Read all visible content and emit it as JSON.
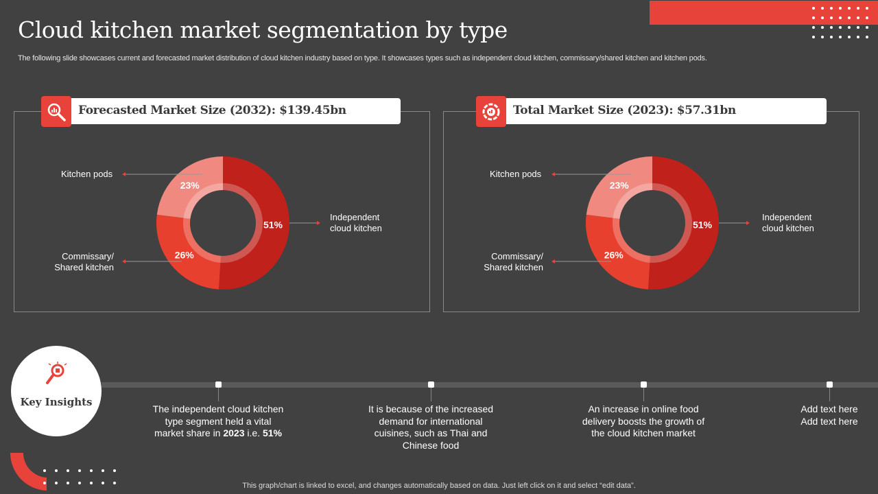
{
  "title": "Cloud kitchen market segmentation by type",
  "subtitle": "The following slide showcases current and forecasted market distribution of cloud kitchen industry based on type. It showcases types such as independent cloud kitchen, commissary/shared kitchen and kitchen pods.",
  "colors": {
    "accent": "#e8433a",
    "independent": "#c0211a",
    "commissary": "#e8402f",
    "pods": "#f08a80",
    "background": "#414141"
  },
  "chart_data": [
    {
      "type": "pie",
      "title": "Forecasted Market Size (2032): $139.45bn",
      "icon": "magnifier-chart-icon",
      "categories": [
        "Independent cloud kitchen",
        "Commissary/ Shared kitchen",
        "Kitchen pods"
      ],
      "values": [
        51,
        26,
        23
      ],
      "data_labels": [
        "51%",
        "26%",
        "23%"
      ],
      "donut": true
    },
    {
      "type": "pie",
      "title": "Total Market Size (2023): $57.31bn",
      "icon": "gauge-icon",
      "categories": [
        "Independent cloud kitchen",
        "Commissary/ Shared kitchen",
        "Kitchen pods"
      ],
      "values": [
        51,
        26,
        23
      ],
      "data_labels": [
        "51%",
        "26%",
        "23%"
      ],
      "donut": true
    }
  ],
  "labels": {
    "pods": "Kitchen pods",
    "independent_1": "Independent",
    "independent_2": "cloud kitchen",
    "commissary_1": "Commissary/",
    "commissary_2": "Shared kitchen"
  },
  "key_insights": {
    "title": "Key Insights",
    "items": [
      {
        "text": "The independent cloud kitchen type segment held a vital market share in",
        "bold1": "2023",
        "mid": " i.e. ",
        "bold2": "51%"
      },
      {
        "text": "It is because of the increased demand for international cuisines, such as Thai and Chinese food"
      },
      {
        "text": "An increase in online food delivery boosts the growth of the cloud kitchen market"
      },
      {
        "text": "Add text here Add text here"
      }
    ]
  },
  "footer": "This graph/chart is linked to excel, and changes automatically based on data. Just left click on it and select “edit data”."
}
